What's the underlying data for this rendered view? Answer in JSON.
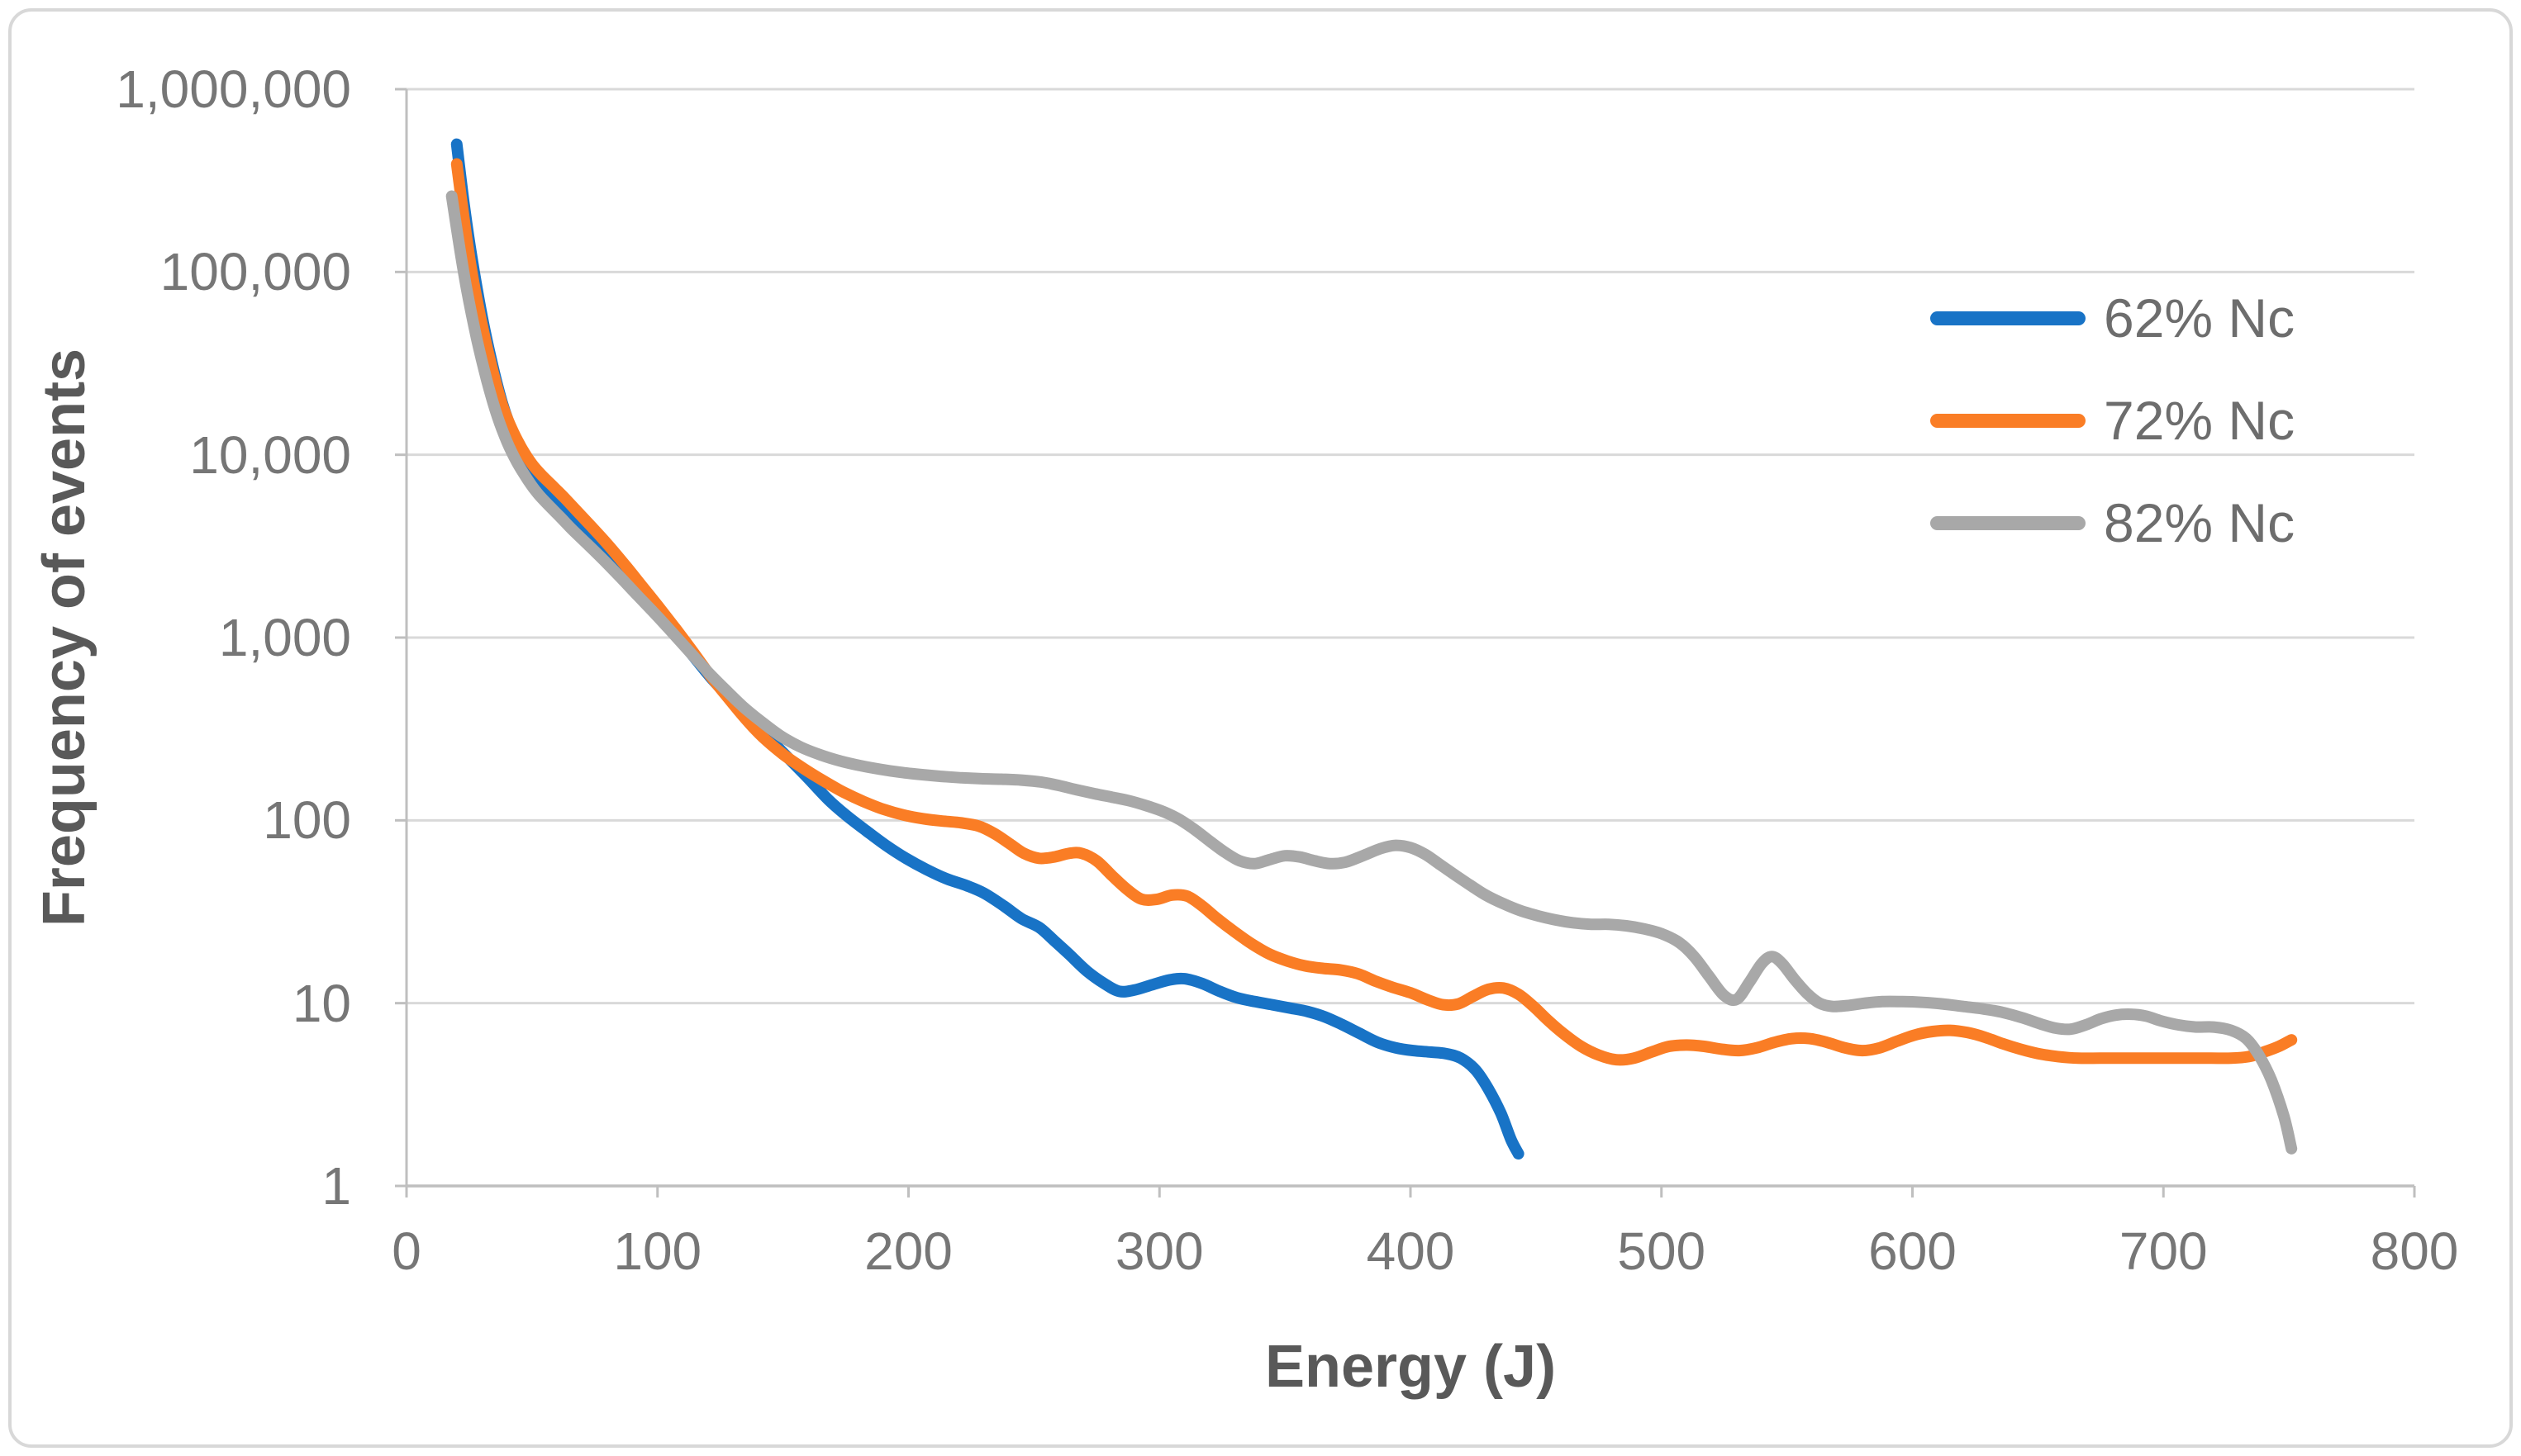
{
  "figure": {
    "y_axis": {
      "title": "Frequency of events",
      "ticks": [
        "1,000,000",
        "100,000",
        "10,000",
        "1,000",
        "100",
        "10",
        "1"
      ]
    },
    "x_axis": {
      "title": "Energy (J)",
      "ticks": [
        "0",
        "100",
        "200",
        "300",
        "400",
        "500",
        "600",
        "700",
        "800"
      ]
    },
    "legend_items": [
      "62% Nc",
      "72% Nc",
      "82% Nc"
    ],
    "colors": {
      "series_blue": "#1873c6",
      "series_orange": "#fa7d25",
      "series_gray": "#a8a8a8",
      "gridline": "#d9d9d9",
      "axis_line": "#bfbfbf",
      "tick_text": "#767676",
      "title_text": "#595959",
      "border": "#d8d8d8"
    }
  },
  "chart_data": {
    "type": "line",
    "title": "",
    "xlabel": "Energy (J)",
    "ylabel": "Frequency of events",
    "x_range": [
      0,
      800
    ],
    "y_scale": "log",
    "y_range": [
      1,
      1000000
    ],
    "grid": "horizontal-only",
    "legend_position": "inside-top-right",
    "line_smoothing": true,
    "series": [
      {
        "name": "62% Nc",
        "color": "#1873c6",
        "points": [
          [
            20,
            500000
          ],
          [
            23,
            230000
          ],
          [
            26,
            120000
          ],
          [
            30,
            58000
          ],
          [
            34,
            32000
          ],
          [
            38,
            19500
          ],
          [
            42,
            13500
          ],
          [
            46,
            10200
          ],
          [
            50,
            8200
          ],
          [
            54,
            6900
          ],
          [
            58,
            5900
          ],
          [
            63,
            5100
          ],
          [
            68,
            4300
          ],
          [
            74,
            3500
          ],
          [
            80,
            2850
          ],
          [
            87,
            2200
          ],
          [
            94,
            1700
          ],
          [
            100,
            1380
          ],
          [
            107,
            1050
          ],
          [
            114,
            800
          ],
          [
            121,
            610
          ],
          [
            128,
            480
          ],
          [
            136,
            370
          ],
          [
            144,
            285
          ],
          [
            152,
            220
          ],
          [
            160,
            170
          ],
          [
            168,
            130
          ],
          [
            175,
            107
          ],
          [
            183,
            88
          ],
          [
            191,
            73
          ],
          [
            199,
            62
          ],
          [
            207,
            54
          ],
          [
            215,
            48
          ],
          [
            223,
            44
          ],
          [
            230,
            40
          ],
          [
            238,
            34
          ],
          [
            245,
            29
          ],
          [
            252,
            26
          ],
          [
            258,
            22
          ],
          [
            264,
            18.5
          ],
          [
            271,
            15
          ],
          [
            278,
            12.8
          ],
          [
            284,
            11.6
          ],
          [
            290,
            11.8
          ],
          [
            297,
            12.6
          ],
          [
            304,
            13.4
          ],
          [
            310,
            13.6
          ],
          [
            317,
            12.8
          ],
          [
            324,
            11.6
          ],
          [
            331,
            10.7
          ],
          [
            338,
            10.2
          ],
          [
            345,
            9.8
          ],
          [
            352,
            9.4
          ],
          [
            359,
            9
          ],
          [
            366,
            8.4
          ],
          [
            373,
            7.6
          ],
          [
            380,
            6.8
          ],
          [
            387,
            6.1
          ],
          [
            394,
            5.7
          ],
          [
            401,
            5.5
          ],
          [
            408,
            5.4
          ],
          [
            414,
            5.3
          ],
          [
            420,
            5
          ],
          [
            426,
            4.3
          ],
          [
            431,
            3.4
          ],
          [
            436,
            2.5
          ],
          [
            440,
            1.8
          ],
          [
            443,
            1.5
          ]
        ]
      },
      {
        "name": "72% Nc",
        "color": "#fa7d25",
        "points": [
          [
            20,
            390000
          ],
          [
            23,
            190000
          ],
          [
            26,
            100000
          ],
          [
            30,
            52000
          ],
          [
            34,
            30000
          ],
          [
            38,
            19000
          ],
          [
            42,
            13800
          ],
          [
            46,
            10800
          ],
          [
            50,
            8900
          ],
          [
            54,
            7700
          ],
          [
            58,
            6800
          ],
          [
            63,
            5800
          ],
          [
            68,
            4900
          ],
          [
            74,
            4000
          ],
          [
            80,
            3250
          ],
          [
            87,
            2500
          ],
          [
            94,
            1900
          ],
          [
            100,
            1500
          ],
          [
            107,
            1130
          ],
          [
            114,
            840
          ],
          [
            121,
            620
          ],
          [
            128,
            470
          ],
          [
            135,
            360
          ],
          [
            142,
            285
          ],
          [
            150,
            230
          ],
          [
            158,
            193
          ],
          [
            166,
            165
          ],
          [
            174,
            143
          ],
          [
            182,
            127
          ],
          [
            190,
            115
          ],
          [
            198,
            107
          ],
          [
            206,
            102
          ],
          [
            214,
            99
          ],
          [
            221,
            97
          ],
          [
            228,
            93
          ],
          [
            234,
            85
          ],
          [
            240,
            75
          ],
          [
            246,
            66
          ],
          [
            252,
            62
          ],
          [
            258,
            63
          ],
          [
            264,
            66
          ],
          [
            269,
            66
          ],
          [
            275,
            60
          ],
          [
            281,
            50
          ],
          [
            287,
            42
          ],
          [
            293,
            37
          ],
          [
            299,
            37
          ],
          [
            305,
            39
          ],
          [
            311,
            38.5
          ],
          [
            317,
            34
          ],
          [
            323,
            29
          ],
          [
            330,
            24.5
          ],
          [
            337,
            21
          ],
          [
            344,
            18.5
          ],
          [
            351,
            17
          ],
          [
            358,
            16
          ],
          [
            365,
            15.5
          ],
          [
            372,
            15.2
          ],
          [
            379,
            14.5
          ],
          [
            386,
            13.2
          ],
          [
            393,
            12.2
          ],
          [
            400,
            11.4
          ],
          [
            407,
            10.4
          ],
          [
            413,
            9.8
          ],
          [
            419,
            9.9
          ],
          [
            425,
            10.9
          ],
          [
            431,
            11.9
          ],
          [
            437,
            12.1
          ],
          [
            443,
            11.2
          ],
          [
            449,
            9.6
          ],
          [
            455,
            8
          ],
          [
            461,
            6.8
          ],
          [
            468,
            5.8
          ],
          [
            475,
            5.2
          ],
          [
            482,
            4.9
          ],
          [
            489,
            5
          ],
          [
            496,
            5.4
          ],
          [
            503,
            5.8
          ],
          [
            510,
            5.9
          ],
          [
            517,
            5.8
          ],
          [
            524,
            5.6
          ],
          [
            531,
            5.5
          ],
          [
            538,
            5.7
          ],
          [
            545,
            6.1
          ],
          [
            552,
            6.4
          ],
          [
            559,
            6.4
          ],
          [
            566,
            6.1
          ],
          [
            573,
            5.7
          ],
          [
            580,
            5.5
          ],
          [
            587,
            5.7
          ],
          [
            594,
            6.2
          ],
          [
            601,
            6.7
          ],
          [
            608,
            7
          ],
          [
            615,
            7.1
          ],
          [
            622,
            6.9
          ],
          [
            629,
            6.5
          ],
          [
            636,
            6
          ],
          [
            643,
            5.6
          ],
          [
            650,
            5.3
          ],
          [
            658,
            5.1
          ],
          [
            666,
            5
          ],
          [
            675,
            5
          ],
          [
            684,
            5
          ],
          [
            693,
            5
          ],
          [
            702,
            5
          ],
          [
            711,
            5
          ],
          [
            719,
            5
          ],
          [
            727,
            5
          ],
          [
            734,
            5.1
          ],
          [
            740,
            5.4
          ],
          [
            746,
            5.8
          ],
          [
            751,
            6.3
          ]
        ]
      },
      {
        "name": "82% Nc",
        "color": "#a8a8a8",
        "points": [
          [
            18,
            260000
          ],
          [
            21,
            140000
          ],
          [
            24,
            80000
          ],
          [
            28,
            43000
          ],
          [
            32,
            25500
          ],
          [
            36,
            16500
          ],
          [
            40,
            11800
          ],
          [
            44,
            9100
          ],
          [
            48,
            7400
          ],
          [
            52,
            6200
          ],
          [
            56,
            5400
          ],
          [
            61,
            4600
          ],
          [
            66,
            3900
          ],
          [
            72,
            3250
          ],
          [
            78,
            2700
          ],
          [
            85,
            2150
          ],
          [
            92,
            1700
          ],
          [
            99,
            1350
          ],
          [
            106,
            1060
          ],
          [
            113,
            830
          ],
          [
            120,
            650
          ],
          [
            127,
            520
          ],
          [
            134,
            420
          ],
          [
            141,
            350
          ],
          [
            149,
            290
          ],
          [
            157,
            252
          ],
          [
            165,
            228
          ],
          [
            173,
            211
          ],
          [
            181,
            199
          ],
          [
            189,
            190
          ],
          [
            197,
            183
          ],
          [
            205,
            178
          ],
          [
            213,
            174
          ],
          [
            221,
            171
          ],
          [
            229,
            169
          ],
          [
            237,
            168
          ],
          [
            245,
            166
          ],
          [
            253,
            162
          ],
          [
            260,
            155
          ],
          [
            267,
            147
          ],
          [
            274,
            140
          ],
          [
            281,
            134
          ],
          [
            288,
            128
          ],
          [
            295,
            120
          ],
          [
            302,
            111
          ],
          [
            308,
            101
          ],
          [
            314,
            89
          ],
          [
            320,
            77
          ],
          [
            326,
            67
          ],
          [
            332,
            60
          ],
          [
            338,
            58
          ],
          [
            344,
            61
          ],
          [
            350,
            64
          ],
          [
            356,
            63
          ],
          [
            362,
            60
          ],
          [
            368,
            58
          ],
          [
            374,
            59
          ],
          [
            381,
            64
          ],
          [
            388,
            70
          ],
          [
            394,
            73
          ],
          [
            400,
            71
          ],
          [
            406,
            65
          ],
          [
            412,
            57
          ],
          [
            418,
            50
          ],
          [
            424,
            44
          ],
          [
            430,
            39
          ],
          [
            437,
            35
          ],
          [
            444,
            32
          ],
          [
            451,
            30
          ],
          [
            458,
            28.5
          ],
          [
            465,
            27.5
          ],
          [
            472,
            27
          ],
          [
            479,
            27
          ],
          [
            486,
            26.5
          ],
          [
            493,
            25.5
          ],
          [
            500,
            24
          ],
          [
            507,
            21.5
          ],
          [
            513,
            18
          ],
          [
            519,
            14
          ],
          [
            525,
            11
          ],
          [
            530,
            10.5
          ],
          [
            535,
            13
          ],
          [
            540,
            16.5
          ],
          [
            544,
            18
          ],
          [
            548,
            16.5
          ],
          [
            553,
            13.5
          ],
          [
            558,
            11.3
          ],
          [
            563,
            10
          ],
          [
            568,
            9.6
          ],
          [
            574,
            9.7
          ],
          [
            581,
            10
          ],
          [
            588,
            10.2
          ],
          [
            596,
            10.2
          ],
          [
            604,
            10.1
          ],
          [
            612,
            9.9
          ],
          [
            620,
            9.6
          ],
          [
            628,
            9.3
          ],
          [
            636,
            8.9
          ],
          [
            644,
            8.3
          ],
          [
            651,
            7.7
          ],
          [
            657,
            7.3
          ],
          [
            663,
            7.2
          ],
          [
            669,
            7.6
          ],
          [
            675,
            8.2
          ],
          [
            681,
            8.6
          ],
          [
            687,
            8.7
          ],
          [
            693,
            8.5
          ],
          [
            699,
            8
          ],
          [
            706,
            7.6
          ],
          [
            713,
            7.4
          ],
          [
            720,
            7.4
          ],
          [
            727,
            7.1
          ],
          [
            733,
            6.4
          ],
          [
            738,
            5.2
          ],
          [
            743,
            3.8
          ],
          [
            748,
            2.4
          ],
          [
            751,
            1.6
          ]
        ]
      }
    ]
  }
}
